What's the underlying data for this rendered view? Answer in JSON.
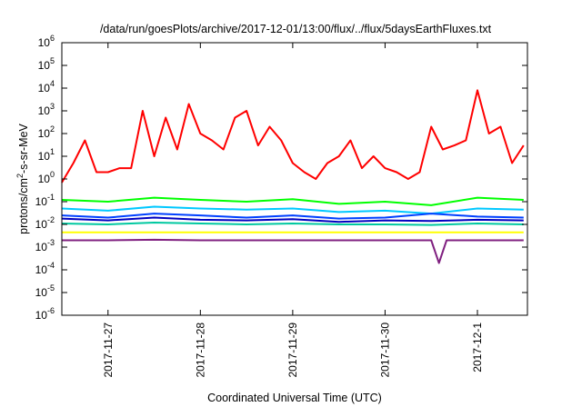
{
  "chart_data": {
    "type": "line",
    "title": "/data/run/goesPlots/archive/2017-12-01/13:00/flux/../flux/5daysEarthFluxes.txt",
    "xlabel": "Coordinated Universal Time (UTC)",
    "ylabel": {
      "prefix": "protons/cm",
      "sup": "2",
      "suffix": "-s-sr-MeV"
    },
    "y_scale": "log",
    "ylim": [
      1e-06,
      1000000.0
    ],
    "y_ticks": [
      {
        "exp": "-6",
        "value": 1e-06
      },
      {
        "exp": "-5",
        "value": 1e-05
      },
      {
        "exp": "-4",
        "value": 0.0001
      },
      {
        "exp": "-3",
        "value": 0.001
      },
      {
        "exp": "-2",
        "value": 0.01
      },
      {
        "exp": "-1",
        "value": 0.1
      },
      {
        "exp": "0",
        "value": 1
      },
      {
        "exp": "1",
        "value": 10
      },
      {
        "exp": "2",
        "value": 100
      },
      {
        "exp": "3",
        "value": 1000
      },
      {
        "exp": "4",
        "value": 10000
      },
      {
        "exp": "5",
        "value": 100000
      },
      {
        "exp": "6",
        "value": 1000000
      }
    ],
    "y_tick_base": "10",
    "xlim": [
      "2017-11-26 12:00",
      "2017-12-01 13:00"
    ],
    "x_ticks": [
      {
        "label": "2017-11-27",
        "value": "2017-11-27 00:00"
      },
      {
        "label": "2017-11-28",
        "value": "2017-11-28 00:00"
      },
      {
        "label": "2017-11-29",
        "value": "2017-11-29 00:00"
      },
      {
        "label": "2017-11-30",
        "value": "2017-11-30 00:00"
      },
      {
        "label": "2017-12-1",
        "value": "2017-12-01 00:00"
      }
    ],
    "grid": false,
    "legend": "none",
    "series": [
      {
        "color": "#ff0000",
        "x": [
          "2017-11-26 12:00",
          "2017-11-26 15:00",
          "2017-11-26 18:00",
          "2017-11-26 21:00",
          "2017-11-27 00:00",
          "2017-11-27 03:00",
          "2017-11-27 06:00",
          "2017-11-27 09:00",
          "2017-11-27 12:00",
          "2017-11-27 15:00",
          "2017-11-27 18:00",
          "2017-11-27 21:00",
          "2017-11-28 00:00",
          "2017-11-28 03:00",
          "2017-11-28 06:00",
          "2017-11-28 09:00",
          "2017-11-28 12:00",
          "2017-11-28 15:00",
          "2017-11-28 18:00",
          "2017-11-28 21:00",
          "2017-11-29 00:00",
          "2017-11-29 03:00",
          "2017-11-29 06:00",
          "2017-11-29 09:00",
          "2017-11-29 12:00",
          "2017-11-29 15:00",
          "2017-11-29 18:00",
          "2017-11-29 21:00",
          "2017-11-30 00:00",
          "2017-11-30 03:00",
          "2017-11-30 06:00",
          "2017-11-30 09:00",
          "2017-11-30 12:00",
          "2017-11-30 15:00",
          "2017-11-30 18:00",
          "2017-11-30 21:00",
          "2017-12-01 00:00",
          "2017-12-01 03:00",
          "2017-12-01 06:00",
          "2017-12-01 09:00",
          "2017-12-01 12:00"
        ],
        "y": [
          0.7,
          5,
          50,
          2,
          2,
          3,
          3,
          1000,
          10,
          500,
          20,
          2000,
          100,
          50,
          20,
          500,
          1000,
          30,
          200,
          50,
          5,
          2,
          1,
          5,
          10,
          50,
          3,
          10,
          3,
          2,
          1,
          2,
          200,
          20,
          30,
          50,
          8000,
          100,
          200,
          5,
          30
        ]
      },
      {
        "color": "#00ff00",
        "x": [
          "2017-11-26 12:00",
          "2017-11-27 00:00",
          "2017-11-27 12:00",
          "2017-11-28 00:00",
          "2017-11-28 12:00",
          "2017-11-29 00:00",
          "2017-11-29 12:00",
          "2017-11-30 00:00",
          "2017-11-30 12:00",
          "2017-12-01 00:00",
          "2017-12-01 12:00"
        ],
        "y": [
          0.12,
          0.1,
          0.15,
          0.12,
          0.1,
          0.13,
          0.08,
          0.1,
          0.07,
          0.15,
          0.12
        ]
      },
      {
        "color": "#00c8ff",
        "x": [
          "2017-11-26 12:00",
          "2017-11-27 00:00",
          "2017-11-27 12:00",
          "2017-11-28 00:00",
          "2017-11-28 12:00",
          "2017-11-29 00:00",
          "2017-11-29 12:00",
          "2017-11-30 00:00",
          "2017-11-30 12:00",
          "2017-12-01 00:00",
          "2017-12-01 12:00"
        ],
        "y": [
          0.05,
          0.04,
          0.06,
          0.05,
          0.045,
          0.05,
          0.035,
          0.04,
          0.03,
          0.05,
          0.045
        ]
      },
      {
        "color": "#0040ff",
        "x": [
          "2017-11-26 12:00",
          "2017-11-27 00:00",
          "2017-11-27 12:00",
          "2017-11-28 00:00",
          "2017-11-28 12:00",
          "2017-11-29 00:00",
          "2017-11-29 12:00",
          "2017-11-30 00:00",
          "2017-11-30 12:00",
          "2017-12-01 00:00",
          "2017-12-01 12:00"
        ],
        "y": [
          0.025,
          0.02,
          0.03,
          0.025,
          0.02,
          0.025,
          0.018,
          0.02,
          0.03,
          0.022,
          0.02
        ]
      },
      {
        "color": "#0000c0",
        "x": [
          "2017-11-26 12:00",
          "2017-11-27 00:00",
          "2017-11-27 12:00",
          "2017-11-28 00:00",
          "2017-11-28 12:00",
          "2017-11-29 00:00",
          "2017-11-29 12:00",
          "2017-11-30 00:00",
          "2017-11-30 12:00",
          "2017-12-01 00:00",
          "2017-12-01 12:00"
        ],
        "y": [
          0.018,
          0.015,
          0.02,
          0.016,
          0.015,
          0.017,
          0.013,
          0.015,
          0.014,
          0.016,
          0.015
        ]
      },
      {
        "color": "#00c8a0",
        "x": [
          "2017-11-26 12:00",
          "2017-11-27 00:00",
          "2017-11-27 12:00",
          "2017-11-28 00:00",
          "2017-11-28 12:00",
          "2017-11-29 00:00",
          "2017-11-29 12:00",
          "2017-11-30 00:00",
          "2017-11-30 12:00",
          "2017-12-01 00:00",
          "2017-12-01 12:00"
        ],
        "y": [
          0.011,
          0.01,
          0.012,
          0.011,
          0.01,
          0.011,
          0.01,
          0.01,
          0.0095,
          0.011,
          0.01
        ]
      },
      {
        "color": "#ffff00",
        "x": [
          "2017-11-26 12:00",
          "2017-11-27 12:00",
          "2017-11-28 12:00",
          "2017-11-29 12:00",
          "2017-11-30 12:00",
          "2017-12-01 12:00"
        ],
        "y": [
          0.0045,
          0.0045,
          0.0045,
          0.0045,
          0.0045,
          0.0045
        ]
      },
      {
        "color": "#802080",
        "x": [
          "2017-11-26 12:00",
          "2017-11-27 00:00",
          "2017-11-27 12:00",
          "2017-11-28 00:00",
          "2017-11-28 12:00",
          "2017-11-29 00:00",
          "2017-11-29 12:00",
          "2017-11-30 00:00",
          "2017-11-30 12:00",
          "2017-11-30 14:00",
          "2017-11-30 16:00",
          "2017-12-01 00:00",
          "2017-12-01 12:00"
        ],
        "y": [
          0.002,
          0.002,
          0.0021,
          0.002,
          0.002,
          0.002,
          0.002,
          0.002,
          0.002,
          0.0002,
          0.002,
          0.002,
          0.002
        ]
      }
    ]
  }
}
